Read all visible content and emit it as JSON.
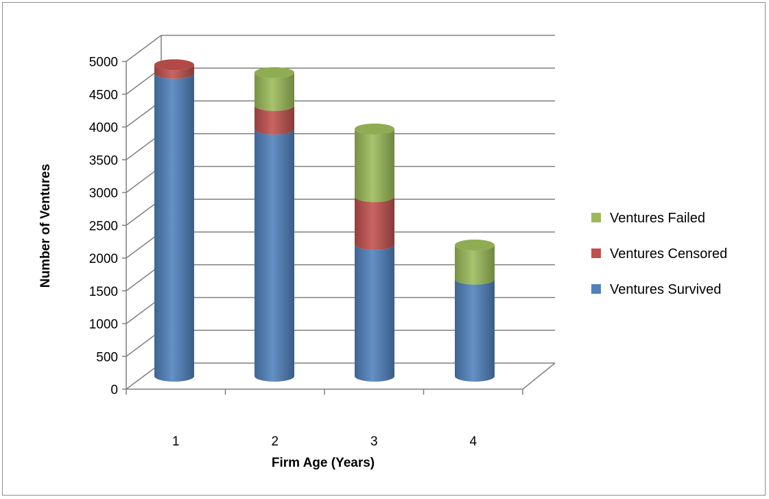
{
  "chart_data": {
    "type": "bar",
    "stacked": true,
    "style": "3d-cylinder",
    "title": "",
    "xlabel": "Firm Age (Years)",
    "ylabel": "Number of Ventures",
    "ylim": [
      0,
      5000
    ],
    "ytick_step": 500,
    "grid": true,
    "legend_position": "right",
    "categories": [
      "1",
      "2",
      "3",
      "4"
    ],
    "series": [
      {
        "name": "Ventures Survived",
        "color": "#4f81bd",
        "values": [
          4620,
          3770,
          2010,
          1480
        ]
      },
      {
        "name": "Ventures Censored",
        "color": "#c0504d",
        "values": [
          130,
          360,
          730,
          0
        ]
      },
      {
        "name": "Ventures Failed",
        "color": "#9bbb59",
        "values": [
          0,
          500,
          1030,
          520
        ]
      }
    ]
  }
}
